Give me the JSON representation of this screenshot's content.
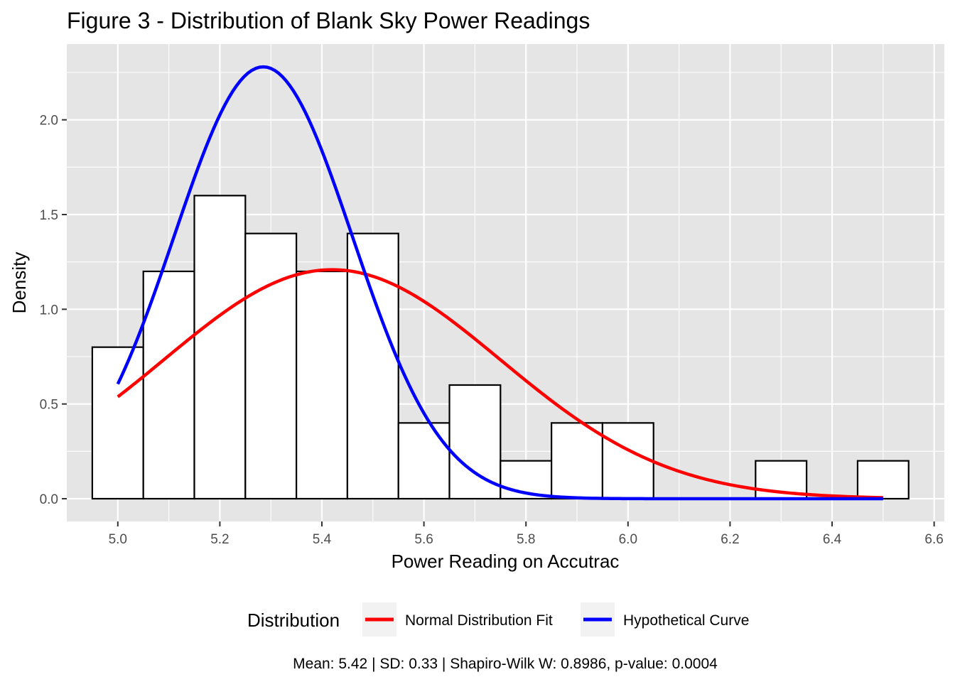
{
  "chart_data": {
    "type": "histogram",
    "title": "Figure 3 - Distribution of Blank Sky Power Readings",
    "xlabel": "Power Reading on Accutrac",
    "ylabel": "Density",
    "xlim": [
      4.9,
      6.62
    ],
    "ylim": [
      -0.12,
      2.4
    ],
    "x_ticks": [
      5.0,
      5.2,
      5.4,
      5.6,
      5.8,
      6.0,
      6.2,
      6.4,
      6.6
    ],
    "x_tick_labels": [
      "5.0",
      "5.2",
      "5.4",
      "5.6",
      "5.8",
      "6.0",
      "6.2",
      "6.4",
      "6.6"
    ],
    "y_ticks": [
      0.0,
      0.5,
      1.0,
      1.5,
      2.0
    ],
    "y_tick_labels": [
      "0.0",
      "0.5",
      "1.0",
      "1.5",
      "2.0"
    ],
    "grid": true,
    "bins": [
      {
        "x0": 4.95,
        "x1": 5.05,
        "density": 0.8
      },
      {
        "x0": 5.05,
        "x1": 5.15,
        "density": 1.2
      },
      {
        "x0": 5.15,
        "x1": 5.25,
        "density": 1.6
      },
      {
        "x0": 5.25,
        "x1": 5.35,
        "density": 1.4
      },
      {
        "x0": 5.35,
        "x1": 5.45,
        "density": 1.2
      },
      {
        "x0": 5.45,
        "x1": 5.55,
        "density": 1.4
      },
      {
        "x0": 5.55,
        "x1": 5.65,
        "density": 0.4
      },
      {
        "x0": 5.65,
        "x1": 5.75,
        "density": 0.6
      },
      {
        "x0": 5.75,
        "x1": 5.85,
        "density": 0.2
      },
      {
        "x0": 5.85,
        "x1": 5.95,
        "density": 0.4
      },
      {
        "x0": 5.95,
        "x1": 6.05,
        "density": 0.4
      },
      {
        "x0": 6.25,
        "x1": 6.35,
        "density": 0.2
      },
      {
        "x0": 6.45,
        "x1": 6.55,
        "density": 0.2
      }
    ],
    "series": [
      {
        "name": "Normal Distribution Fit",
        "color": "#ff0000",
        "kind": "normal",
        "mean": 5.42,
        "sd": 0.33,
        "x_range": [
          5.0,
          6.5
        ]
      },
      {
        "name": "Hypothetical Curve",
        "color": "#0000ff",
        "kind": "normal",
        "mean": 5.285,
        "sd": 0.175,
        "x_range": [
          5.0,
          6.5
        ]
      }
    ],
    "legend": {
      "title": "Distribution",
      "position": "bottom"
    },
    "caption": "Mean: 5.42 | SD: 0.33 | Shapiro-Wilk W: 0.8986, p-value: 0.0004"
  },
  "colors": {
    "panel": "#e5e5e5",
    "grid": "#ffffff",
    "bar_fill": "#ffffff",
    "bar_stroke": "#000000"
  }
}
